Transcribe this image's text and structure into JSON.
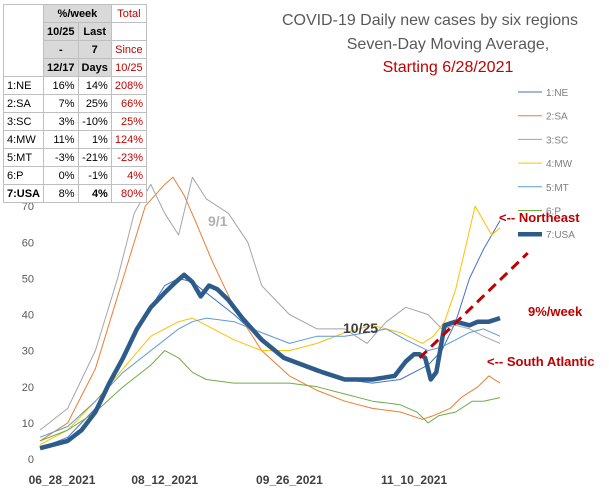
{
  "chart_data": {
    "type": "line",
    "title_lines": [
      "COVID-19 Daily new cases by six regions",
      "Seven-Day Moving Average,"
    ],
    "subtitle": "Starting 6/28/2021",
    "x_tick_labels": [
      "06_28_2021",
      "08_12_2021",
      "09_26_2021",
      "11_10_2021"
    ],
    "x_tick_days": [
      0,
      45,
      90,
      135
    ],
    "x_range_days": [
      0,
      166
    ],
    "y_ticks": [
      0,
      10,
      20,
      30,
      40,
      50,
      60,
      70
    ],
    "ylim": [
      0,
      80
    ],
    "grid": false,
    "legend_position": "right",
    "series": [
      {
        "name": "1:NE",
        "color": "#4472c4",
        "width": 1,
        "points": [
          [
            0,
            3
          ],
          [
            10,
            6
          ],
          [
            20,
            14
          ],
          [
            30,
            28
          ],
          [
            40,
            42
          ],
          [
            45,
            48
          ],
          [
            50,
            50
          ],
          [
            55,
            49
          ],
          [
            60,
            46
          ],
          [
            70,
            40
          ],
          [
            80,
            33
          ],
          [
            90,
            27
          ],
          [
            100,
            24
          ],
          [
            110,
            22
          ],
          [
            120,
            21
          ],
          [
            130,
            22
          ],
          [
            140,
            26
          ],
          [
            145,
            30
          ],
          [
            150,
            38
          ],
          [
            155,
            50
          ],
          [
            160,
            58
          ],
          [
            166,
            66
          ]
        ]
      },
      {
        "name": "2:SA",
        "color": "#ed7d31",
        "width": 1,
        "points": [
          [
            0,
            5
          ],
          [
            10,
            10
          ],
          [
            20,
            25
          ],
          [
            30,
            50
          ],
          [
            38,
            70
          ],
          [
            45,
            76
          ],
          [
            48,
            78
          ],
          [
            52,
            73
          ],
          [
            56,
            66
          ],
          [
            62,
            55
          ],
          [
            70,
            42
          ],
          [
            80,
            30
          ],
          [
            90,
            23
          ],
          [
            100,
            19
          ],
          [
            110,
            16
          ],
          [
            120,
            14
          ],
          [
            130,
            13
          ],
          [
            138,
            11
          ],
          [
            142,
            12
          ],
          [
            148,
            14
          ],
          [
            152,
            17
          ],
          [
            158,
            20
          ],
          [
            162,
            23
          ],
          [
            166,
            21
          ]
        ]
      },
      {
        "name": "3:SC",
        "color": "#a5a5a5",
        "width": 1,
        "points": [
          [
            0,
            8
          ],
          [
            10,
            14
          ],
          [
            20,
            30
          ],
          [
            28,
            50
          ],
          [
            34,
            68
          ],
          [
            40,
            76
          ],
          [
            45,
            68
          ],
          [
            50,
            62
          ],
          [
            55,
            78
          ],
          [
            60,
            72
          ],
          [
            68,
            68
          ],
          [
            75,
            60
          ],
          [
            80,
            48
          ],
          [
            90,
            40
          ],
          [
            100,
            36
          ],
          [
            110,
            36
          ],
          [
            118,
            32
          ],
          [
            125,
            38
          ],
          [
            132,
            42
          ],
          [
            140,
            40
          ],
          [
            145,
            36
          ],
          [
            150,
            37
          ],
          [
            155,
            36
          ],
          [
            160,
            34
          ],
          [
            166,
            32
          ]
        ]
      },
      {
        "name": "4:MW",
        "color": "#ffc000",
        "width": 1,
        "points": [
          [
            0,
            4
          ],
          [
            10,
            8
          ],
          [
            20,
            16
          ],
          [
            30,
            25
          ],
          [
            40,
            34
          ],
          [
            45,
            36
          ],
          [
            50,
            38
          ],
          [
            55,
            39
          ],
          [
            60,
            37
          ],
          [
            70,
            33
          ],
          [
            80,
            30
          ],
          [
            90,
            30
          ],
          [
            100,
            32
          ],
          [
            110,
            35
          ],
          [
            120,
            37
          ],
          [
            130,
            35
          ],
          [
            138,
            32
          ],
          [
            142,
            34
          ],
          [
            146,
            38
          ],
          [
            150,
            47
          ],
          [
            154,
            60
          ],
          [
            157,
            70
          ],
          [
            160,
            66
          ],
          [
            163,
            62
          ],
          [
            166,
            64
          ]
        ]
      },
      {
        "name": "5:MT",
        "color": "#5b9bd5",
        "width": 1,
        "points": [
          [
            0,
            6
          ],
          [
            10,
            9
          ],
          [
            20,
            16
          ],
          [
            30,
            24
          ],
          [
            40,
            30
          ],
          [
            45,
            33
          ],
          [
            50,
            36
          ],
          [
            55,
            38
          ],
          [
            60,
            39
          ],
          [
            70,
            38
          ],
          [
            80,
            35
          ],
          [
            90,
            32
          ],
          [
            100,
            34
          ],
          [
            110,
            34
          ],
          [
            118,
            35
          ],
          [
            125,
            36
          ],
          [
            132,
            33
          ],
          [
            140,
            30
          ],
          [
            145,
            31
          ],
          [
            150,
            33
          ],
          [
            155,
            35
          ],
          [
            160,
            36
          ],
          [
            166,
            34
          ]
        ]
      },
      {
        "name": "6:P",
        "color": "#70ad47",
        "width": 1,
        "points": [
          [
            0,
            5
          ],
          [
            10,
            8
          ],
          [
            20,
            13
          ],
          [
            30,
            20
          ],
          [
            40,
            26
          ],
          [
            45,
            30
          ],
          [
            50,
            28
          ],
          [
            55,
            24
          ],
          [
            60,
            22
          ],
          [
            70,
            21
          ],
          [
            80,
            21
          ],
          [
            90,
            21
          ],
          [
            100,
            20
          ],
          [
            110,
            18
          ],
          [
            120,
            16
          ],
          [
            130,
            15
          ],
          [
            136,
            13
          ],
          [
            140,
            10
          ],
          [
            144,
            12
          ],
          [
            150,
            13
          ],
          [
            156,
            16
          ],
          [
            160,
            16
          ],
          [
            166,
            17
          ]
        ]
      },
      {
        "name": "7:USA",
        "color": "#2e5c8a",
        "width": 4.5,
        "points": [
          [
            0,
            3
          ],
          [
            5,
            4
          ],
          [
            10,
            5
          ],
          [
            15,
            8
          ],
          [
            20,
            13
          ],
          [
            25,
            21
          ],
          [
            30,
            28
          ],
          [
            35,
            36
          ],
          [
            40,
            42
          ],
          [
            45,
            46
          ],
          [
            49,
            49
          ],
          [
            52,
            51
          ],
          [
            55,
            49
          ],
          [
            58,
            45
          ],
          [
            61,
            48
          ],
          [
            64,
            47
          ],
          [
            68,
            44
          ],
          [
            73,
            39
          ],
          [
            80,
            33
          ],
          [
            88,
            28
          ],
          [
            95,
            26
          ],
          [
            102,
            24
          ],
          [
            110,
            22
          ],
          [
            120,
            22
          ],
          [
            128,
            23
          ],
          [
            132,
            27
          ],
          [
            135,
            29
          ],
          [
            137,
            29
          ],
          [
            139,
            28
          ],
          [
            141,
            22
          ],
          [
            143,
            24
          ],
          [
            146,
            37
          ],
          [
            150,
            38
          ],
          [
            155,
            37
          ],
          [
            158,
            38
          ],
          [
            162,
            38
          ],
          [
            166,
            39
          ]
        ]
      }
    ],
    "annotations": [
      "9/1",
      "10/25",
      "<-- Northeast",
      "9%/week",
      "<-- South Atlantic"
    ],
    "trend_line": {
      "label": "9%/week",
      "style": "dashed",
      "color": "#c00000",
      "points": [
        [
          137,
          28
        ],
        [
          176,
          57
        ]
      ]
    }
  },
  "table": {
    "header": {
      "col1": "%/week",
      "col1a": [
        "10/25",
        "-",
        "12/17"
      ],
      "col1b": [
        "Last",
        "7",
        "Days"
      ],
      "col2": [
        "Total",
        "Since",
        "10/25"
      ]
    },
    "rows": [
      {
        "region": "1:NE",
        "a": "16%",
        "b": "14%",
        "total": "208%"
      },
      {
        "region": "2:SA",
        "a": "7%",
        "b": "25%",
        "total": "66%"
      },
      {
        "region": "3:SC",
        "a": "3%",
        "b": "-10%",
        "total": "25%"
      },
      {
        "region": "4:MW",
        "a": "11%",
        "b": "1%",
        "total": "124%"
      },
      {
        "region": "5:MT",
        "a": "-3%",
        "b": "-21%",
        "total": "-23%"
      },
      {
        "region": "6:P",
        "a": "0%",
        "b": "-1%",
        "total": "4%"
      },
      {
        "region": "7:USA",
        "a": "8%",
        "b": "4%",
        "total": "80%"
      }
    ]
  }
}
